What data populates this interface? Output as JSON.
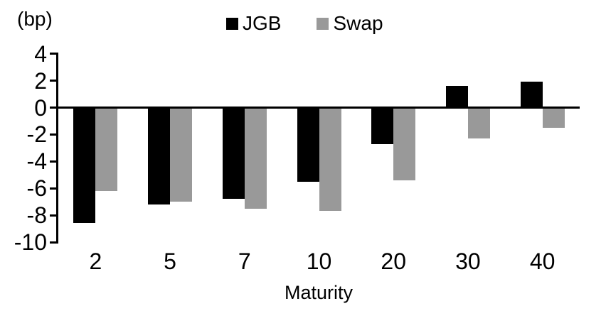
{
  "chart_data": {
    "type": "bar",
    "title": "",
    "unit_label": "(bp)",
    "xlabel": "Maturity",
    "ylabel": "",
    "categories": [
      "2",
      "5",
      "7",
      "10",
      "20",
      "30",
      "40"
    ],
    "series": [
      {
        "name": "JGB",
        "color": "#000000",
        "values": [
          -8.6,
          -7.2,
          -6.8,
          -5.5,
          -2.7,
          1.6,
          1.9
        ]
      },
      {
        "name": "Swap",
        "color": "#999999",
        "values": [
          -6.2,
          -7.0,
          -7.5,
          -7.7,
          -5.4,
          -2.3,
          -1.5
        ]
      }
    ],
    "y_ticks": [
      4,
      2,
      0,
      -2,
      -4,
      -6,
      -8,
      -10
    ],
    "ylim": [
      -10,
      4
    ],
    "grid": "off",
    "legend_position": "top-center",
    "baseline": 0
  }
}
